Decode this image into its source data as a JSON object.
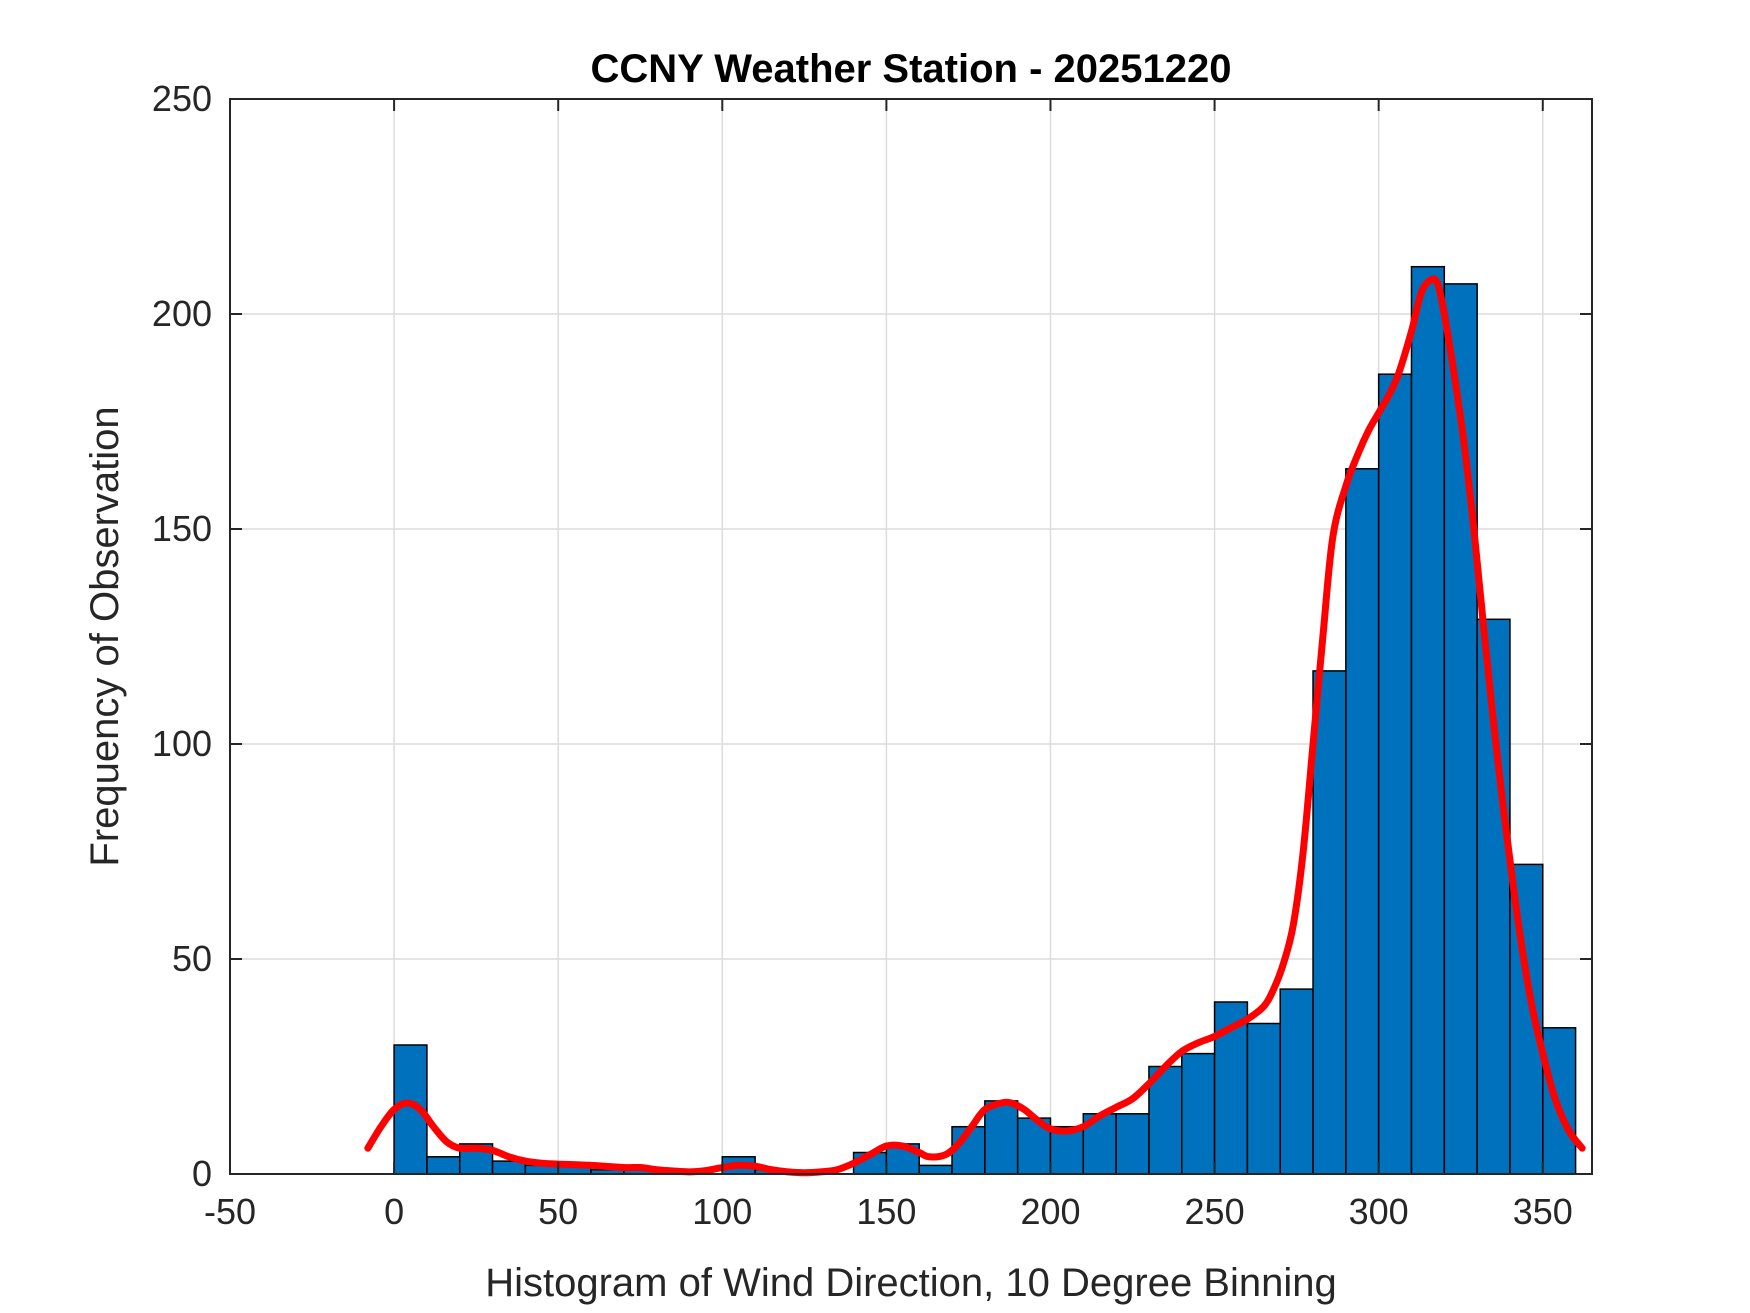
{
  "chart_data": {
    "type": "bar",
    "title": "CCNY Weather Station - 20251220",
    "xlabel": "Histogram of Wind Direction, 10 Degree Binning",
    "ylabel": "Frequency of Observation",
    "xlim": [
      -50,
      365
    ],
    "ylim": [
      0,
      250
    ],
    "xticks": [
      -50,
      0,
      50,
      100,
      150,
      200,
      250,
      300,
      350
    ],
    "yticks": [
      0,
      50,
      100,
      150,
      200,
      250
    ],
    "grid": true,
    "bin_width": 10,
    "bins": [
      {
        "x0": 0,
        "value": 30
      },
      {
        "x0": 10,
        "value": 4
      },
      {
        "x0": 20,
        "value": 7
      },
      {
        "x0": 30,
        "value": 3
      },
      {
        "x0": 40,
        "value": 2
      },
      {
        "x0": 50,
        "value": 2
      },
      {
        "x0": 60,
        "value": 1
      },
      {
        "x0": 70,
        "value": 1
      },
      {
        "x0": 80,
        "value": 1
      },
      {
        "x0": 90,
        "value": 0
      },
      {
        "x0": 100,
        "value": 4
      },
      {
        "x0": 110,
        "value": 1
      },
      {
        "x0": 120,
        "value": 0
      },
      {
        "x0": 130,
        "value": 0
      },
      {
        "x0": 140,
        "value": 5
      },
      {
        "x0": 150,
        "value": 7
      },
      {
        "x0": 160,
        "value": 2
      },
      {
        "x0": 170,
        "value": 11
      },
      {
        "x0": 180,
        "value": 17
      },
      {
        "x0": 190,
        "value": 13
      },
      {
        "x0": 200,
        "value": 11
      },
      {
        "x0": 210,
        "value": 14
      },
      {
        "x0": 220,
        "value": 14
      },
      {
        "x0": 230,
        "value": 25
      },
      {
        "x0": 240,
        "value": 28
      },
      {
        "x0": 250,
        "value": 40
      },
      {
        "x0": 260,
        "value": 35
      },
      {
        "x0": 270,
        "value": 43
      },
      {
        "x0": 280,
        "value": 117
      },
      {
        "x0": 290,
        "value": 164
      },
      {
        "x0": 300,
        "value": 186
      },
      {
        "x0": 310,
        "value": 211
      },
      {
        "x0": 320,
        "value": 207
      },
      {
        "x0": 330,
        "value": 129
      },
      {
        "x0": 340,
        "value": 72
      },
      {
        "x0": 350,
        "value": 34
      }
    ],
    "bar_color": "#0072BD",
    "curve_color": "#FF0000",
    "curve": [
      [
        -8,
        6
      ],
      [
        -4,
        11
      ],
      [
        0,
        15
      ],
      [
        4,
        16.5
      ],
      [
        8,
        15
      ],
      [
        12,
        11
      ],
      [
        16,
        7.5
      ],
      [
        20,
        6
      ],
      [
        25,
        6
      ],
      [
        30,
        5.5
      ],
      [
        35,
        4
      ],
      [
        40,
        3
      ],
      [
        45,
        2.5
      ],
      [
        50,
        2.3
      ],
      [
        60,
        2
      ],
      [
        70,
        1.5
      ],
      [
        75,
        1.5
      ],
      [
        80,
        1
      ],
      [
        85,
        0.7
      ],
      [
        90,
        0.5
      ],
      [
        95,
        0.8
      ],
      [
        100,
        1.5
      ],
      [
        105,
        2
      ],
      [
        110,
        1.8
      ],
      [
        115,
        1
      ],
      [
        120,
        0.5
      ],
      [
        125,
        0.3
      ],
      [
        130,
        0.5
      ],
      [
        135,
        1
      ],
      [
        140,
        2.5
      ],
      [
        145,
        4.5
      ],
      [
        150,
        6.5
      ],
      [
        155,
        6.5
      ],
      [
        160,
        5
      ],
      [
        163,
        4
      ],
      [
        168,
        4.5
      ],
      [
        172,
        7
      ],
      [
        176,
        11
      ],
      [
        180,
        15
      ],
      [
        185,
        16.5
      ],
      [
        188,
        16.5
      ],
      [
        192,
        15
      ],
      [
        196,
        12.5
      ],
      [
        200,
        10.5
      ],
      [
        205,
        10
      ],
      [
        210,
        11
      ],
      [
        215,
        13.5
      ],
      [
        220,
        15.5
      ],
      [
        225,
        17.5
      ],
      [
        230,
        21
      ],
      [
        235,
        25
      ],
      [
        240,
        28.5
      ],
      [
        245,
        30.5
      ],
      [
        250,
        32
      ],
      [
        255,
        34
      ],
      [
        260,
        36
      ],
      [
        265,
        39
      ],
      [
        268,
        43
      ],
      [
        271,
        49
      ],
      [
        274,
        58
      ],
      [
        277,
        75
      ],
      [
        280,
        100
      ],
      [
        283,
        125
      ],
      [
        286,
        148
      ],
      [
        290,
        160
      ],
      [
        294,
        168
      ],
      [
        297,
        173
      ],
      [
        300,
        177
      ],
      [
        303,
        181
      ],
      [
        306,
        186
      ],
      [
        310,
        196
      ],
      [
        313,
        205
      ],
      [
        316,
        208
      ],
      [
        318,
        207
      ],
      [
        320,
        200
      ],
      [
        323,
        186
      ],
      [
        326,
        170
      ],
      [
        329,
        150
      ],
      [
        332,
        127
      ],
      [
        335,
        105
      ],
      [
        338,
        85
      ],
      [
        341,
        67
      ],
      [
        344,
        51
      ],
      [
        347,
        38
      ],
      [
        351,
        25
      ],
      [
        354,
        17
      ],
      [
        358,
        10
      ],
      [
        362,
        6
      ]
    ]
  }
}
